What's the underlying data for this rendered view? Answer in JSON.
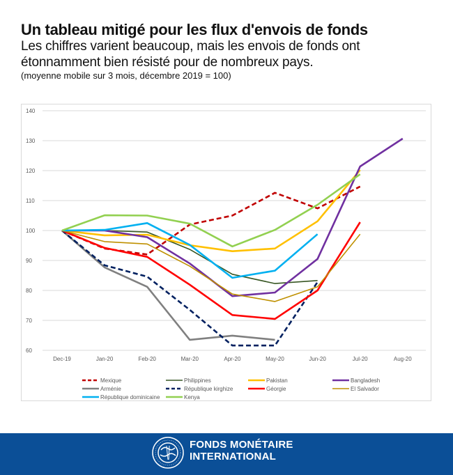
{
  "header": {
    "title": "Un tableau mitigé pour les flux d'envois de fonds",
    "subtitle": "Les chiffres varient beaucoup, mais les envois de fonds ont étonnamment bien résisté pour de nombreux pays.",
    "note": "(moyenne mobile sur 3 mois, décembre 2019 = 100)"
  },
  "chart_data": {
    "type": "line",
    "title": "",
    "xlabel": "",
    "ylabel": "",
    "categories": [
      "Dec-19",
      "Jan-20",
      "Feb-20",
      "Mar-20",
      "Apr-20",
      "May-20",
      "Jun-20",
      "Jul-20",
      "Aug-20"
    ],
    "ylim": [
      60,
      140
    ],
    "yticks": [
      60,
      70,
      80,
      90,
      100,
      110,
      120,
      130,
      140
    ],
    "grid": true,
    "legend": "bottom",
    "series": [
      {
        "name": "Mexique",
        "color": "#c00000",
        "dashed": true,
        "values": [
          100,
          94.0,
          92.0,
          102.0,
          105.0,
          112.6,
          107.4,
          114.7,
          null
        ]
      },
      {
        "name": "Philippines",
        "color": "#375623",
        "dashed": false,
        "values": [
          100,
          100.0,
          99.5,
          93.7,
          85.4,
          82.3,
          83.3,
          null,
          null
        ]
      },
      {
        "name": "Pakistan",
        "color": "#ffc000",
        "dashed": false,
        "values": [
          100,
          98.4,
          98.6,
          95.1,
          93.1,
          94.0,
          103.1,
          120.2,
          null
        ]
      },
      {
        "name": "Bangladesh",
        "color": "#7030a0",
        "dashed": false,
        "values": [
          100,
          100.0,
          97.8,
          89.0,
          78.1,
          79.3,
          90.5,
          121.4,
          130.7
        ]
      },
      {
        "name": "Arménie",
        "color": "#808080",
        "dashed": false,
        "values": [
          100,
          87.7,
          81.2,
          63.5,
          64.9,
          63.5,
          null,
          null,
          null
        ]
      },
      {
        "name": "République kirghize",
        "color": "#002060",
        "dashed": true,
        "values": [
          100,
          88.4,
          84.6,
          73.5,
          61.6,
          61.6,
          82.8,
          null,
          null
        ]
      },
      {
        "name": "Géorgie",
        "color": "#ff0000",
        "dashed": false,
        "values": [
          100,
          94.2,
          91.2,
          81.9,
          71.8,
          70.5,
          80.0,
          102.8,
          null
        ]
      },
      {
        "name": "El Salvador",
        "color": "#bf9000",
        "dashed": false,
        "values": [
          100,
          96.3,
          95.5,
          88.1,
          78.8,
          76.3,
          81.2,
          98.8,
          null
        ]
      },
      {
        "name": "République dominicaine",
        "color": "#00b0f0",
        "dashed": false,
        "values": [
          100,
          100.2,
          102.5,
          95.2,
          84.2,
          86.6,
          98.8,
          null,
          null
        ]
      },
      {
        "name": "Kenya",
        "color": "#92d050",
        "dashed": false,
        "values": [
          100,
          105.1,
          105.0,
          102.3,
          94.7,
          100.2,
          108.6,
          118.8,
          null
        ]
      }
    ]
  },
  "footer": {
    "org_line1": "FONDS MONÉTAIRE",
    "org_line2": "INTERNATIONAL",
    "logo_icon": "imf-seal-icon",
    "background": "#0b4f97"
  }
}
